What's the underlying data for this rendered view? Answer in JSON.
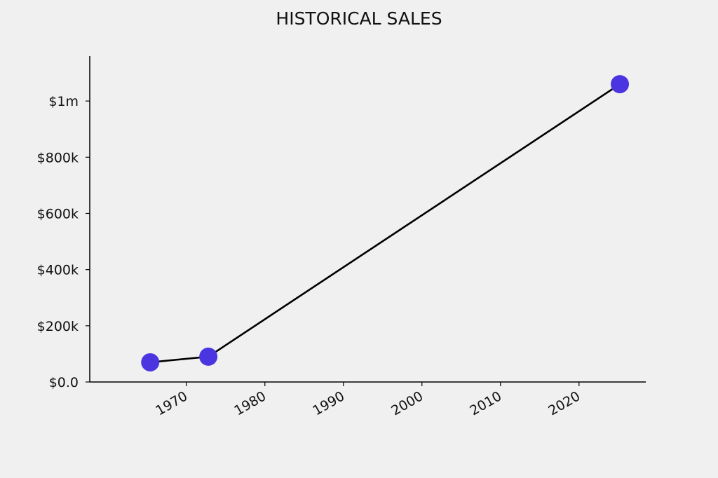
{
  "chart_data": {
    "type": "line",
    "title": "HISTORICAL SALES",
    "xlabel": "",
    "ylabel": "",
    "x_dates": [
      "1965-06-01",
      "1972-10-01",
      "2025-03-01"
    ],
    "x": [
      1965.4,
      1972.8,
      2025.2
    ],
    "y": [
      70000,
      90000,
      1060000
    ],
    "xlim": [
      1957.7,
      2028.5
    ],
    "ylim": [
      0,
      1160000
    ],
    "x_ticks": [
      1970,
      1980,
      1990,
      2000,
      2010,
      2020
    ],
    "x_tick_labels": [
      "1970",
      "1980",
      "1990",
      "2000",
      "2010",
      "2020"
    ],
    "y_ticks": [
      0,
      200000,
      400000,
      600000,
      800000,
      1000000
    ],
    "y_tick_labels": [
      "$0.0",
      "$200k",
      "$400k",
      "$600k",
      "$800k",
      "$1m"
    ],
    "grid": false,
    "colors": {
      "line": "#000000",
      "marker": "#4b35e0",
      "background": "#f0f0f0"
    }
  }
}
